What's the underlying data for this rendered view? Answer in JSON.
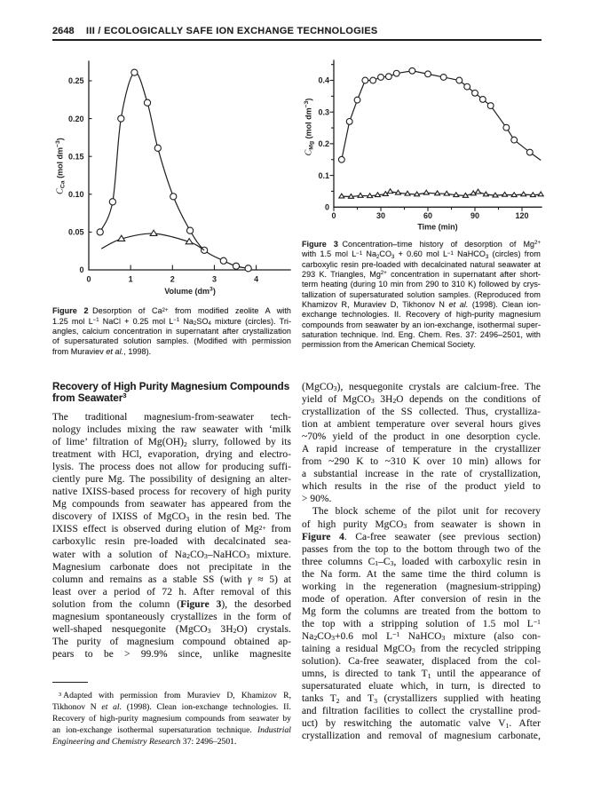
{
  "page": {
    "background": "#ffffff",
    "ink": "#1f1f1f"
  },
  "header": {
    "page_number": "2648",
    "title": "III / ECOLOGICALLY SAFE ION EXCHANGE TECHNOLOGIES"
  },
  "section_heading": {
    "lines": [
      {
        "r": [
          "Recovery of High Purity Magnesium Compounds"
        ],
        "end": 1
      },
      {
        "r": [
          "from Seawater",
          [
            "sup",
            "3"
          ]
        ],
        "end": 1
      }
    ]
  },
  "figure2": {
    "caption_lines": [
      {
        "r": [
          [
            "b",
            "Figure 2"
          ],
          " Desorption of Ca",
          [
            "sup",
            "2+"
          ],
          " from modified zeolite A with"
        ]
      },
      {
        "r": [
          "1.25 mol L",
          [
            "sup",
            "−1"
          ],
          " NaCl + 0.25 mol L",
          [
            "sup",
            "−1"
          ],
          " Na",
          [
            "sub",
            "2"
          ],
          "SO",
          [
            "sub",
            "4"
          ],
          " mixture (circles). Tri-"
        ]
      },
      {
        "r": [
          "angles, calcium concentration in supernatant after crystallization"
        ]
      },
      {
        "r": [
          "of supersaturated solution samples. (Modified with permission"
        ]
      },
      {
        "r": [
          "from Muraviev ",
          [
            "i",
            "et al."
          ],
          ", 1998)."
        ],
        "end": 1
      }
    ]
  },
  "figure3": {
    "caption_lines": [
      {
        "r": [
          [
            "b",
            "Figure 3"
          ],
          " Concentration–time history of desorption of Mg",
          [
            "sup",
            "2+"
          ]
        ]
      },
      {
        "r": [
          "with 1.5 mol L",
          [
            "sup",
            "−1"
          ],
          " Na",
          [
            "sub",
            "2"
          ],
          "CO",
          [
            "sub",
            "3"
          ],
          " + 0.60 mol L",
          [
            "sup",
            "−1"
          ],
          " NaHCO",
          [
            "sub",
            "3"
          ],
          " (circles) from"
        ]
      },
      {
        "r": [
          "carboxylic resin pre-loaded with decalcinated natural seawater at"
        ]
      },
      {
        "r": [
          "293 K. Triangles, Mg",
          [
            "sup",
            "2+"
          ],
          " concentration in supernatant after short-"
        ]
      },
      {
        "r": [
          "term heating (during 10 min from 290 to 310 K) followed by crys-"
        ]
      },
      {
        "r": [
          "tallization of supersaturated solution samples. (Reproduced from"
        ]
      },
      {
        "r": [
          "Khamizov R, Muraviev D, Tikhonov N ",
          [
            "i",
            "et al."
          ],
          " (1998). Clean ion-"
        ]
      },
      {
        "r": [
          "exchange technologies. II. Recovery of high-purity magnesium"
        ]
      },
      {
        "r": [
          "compounds from seawater by an ion-exchange, isothermal super-"
        ]
      },
      {
        "r": [
          "saturation technique. Ind. Eng. Chem. Res. 37: 2496–2501, with"
        ]
      },
      {
        "r": [
          "permission from the American Chemical Society."
        ],
        "end": 1
      }
    ]
  },
  "body": {
    "left_lines": [
      {
        "r": [
          "The traditional magnesium-from-seawater tech-"
        ]
      },
      {
        "r": [
          "nology includes mixing the raw seawater with ‘milk"
        ]
      },
      {
        "r": [
          "of lime’ filtration of Mg(OH)",
          [
            "sub",
            "2"
          ],
          " slurry, followed by its"
        ]
      },
      {
        "r": [
          "treatment with HCl, evaporation, drying and electro-"
        ]
      },
      {
        "r": [
          "lysis. The process does not allow for producing suffi-"
        ]
      },
      {
        "r": [
          "ciently pure Mg. The possibility of designing an alter-"
        ]
      },
      {
        "r": [
          "native IXISS-based process for recovery of high purity"
        ]
      },
      {
        "r": [
          "Mg compounds from seawater has appeared from the"
        ]
      },
      {
        "r": [
          "discovery of IXISS of MgCO",
          [
            "sub",
            "3"
          ],
          " in the resin bed. The"
        ]
      },
      {
        "r": [
          "IXISS effect is observed during elution of Mg",
          [
            "sup",
            "2+"
          ],
          " from"
        ]
      },
      {
        "r": [
          "carboxylic resin pre-loaded with decalcinated sea-"
        ]
      },
      {
        "r": [
          "water with a solution of Na",
          [
            "sub",
            "2"
          ],
          "CO",
          [
            "sub",
            "3"
          ],
          "–NaHCO",
          [
            "sub",
            "3"
          ],
          " mixture."
        ]
      },
      {
        "r": [
          "Magnesium carbonate does not precipitate in the"
        ]
      },
      {
        "r": [
          "column and remains as a stable SS (with ",
          [
            "i",
            "γ"
          ],
          " ≈ 5) at"
        ]
      },
      {
        "r": [
          "least over a period of 72 h. After removal of this"
        ]
      },
      {
        "r": [
          "solution from the column (",
          [
            "b",
            "Figure 3"
          ],
          "), the desorbed"
        ]
      },
      {
        "r": [
          "magnesium spontaneously crystallizes in the form of"
        ]
      },
      {
        "r": [
          "well-shaped nesquegonite (MgCO",
          [
            "sub",
            "3"
          ],
          " 3H",
          [
            "sub",
            "2"
          ],
          "O) crystals."
        ]
      },
      {
        "r": [
          "The purity of magnesium compound obtained ap-"
        ]
      },
      {
        "r": [
          "pears to be > 99.9% since, unlike magnesite"
        ]
      }
    ],
    "right_lines": [
      {
        "r": [
          "(MgCO",
          [
            "sub",
            "3"
          ],
          "), nesquegonite crystals are calcium-free. The"
        ]
      },
      {
        "r": [
          "yield of MgCO",
          [
            "sub",
            "3"
          ],
          " 3H",
          [
            "sub",
            "2"
          ],
          "O depends on the conditions of"
        ]
      },
      {
        "r": [
          "crystallization of the SS collected. Thus, crystalliza-"
        ]
      },
      {
        "r": [
          "tion at ambient temperature over several hours gives"
        ]
      },
      {
        "r": [
          "~70% yield of the product in one desorption cycle."
        ]
      },
      {
        "r": [
          "A rapid increase of temperature in the crystallizer"
        ]
      },
      {
        "r": [
          "from ~290 K to ~310 K over 10 min) allows for"
        ]
      },
      {
        "r": [
          "a substantial increase in the rate of crystallization,"
        ]
      },
      {
        "r": [
          "which results in the rise of the product yield to"
        ]
      },
      {
        "r": [
          "> 90%."
        ],
        "end": 1
      },
      {
        "r": [
          "The block scheme of the pilot unit for recovery"
        ],
        "ind": 1
      },
      {
        "r": [
          "of high purity MgCO",
          [
            "sub",
            "3"
          ],
          " from seawater is shown in"
        ]
      },
      {
        "r": [
          [
            "b",
            "Figure 4"
          ],
          ". Ca-free seawater (see previous section)"
        ]
      },
      {
        "r": [
          "passes from the top to the bottom through two of the"
        ]
      },
      {
        "r": [
          "three columns C",
          [
            "sub",
            "1"
          ],
          "–C",
          [
            "sub",
            "3"
          ],
          ", loaded with carboxylic resin in"
        ]
      },
      {
        "r": [
          "the Na form. At the same time the third column is"
        ]
      },
      {
        "r": [
          "working in the regeneration (magnesium-stripping)"
        ]
      },
      {
        "r": [
          "mode of operation. After conversion of resin in the"
        ]
      },
      {
        "r": [
          "Mg form the columns are treated from the bottom to"
        ]
      },
      {
        "r": [
          "the top with a stripping solution of 1.5 mol L",
          [
            "sup",
            "−1"
          ]
        ]
      },
      {
        "r": [
          "Na",
          [
            "sub",
            "2"
          ],
          "CO",
          [
            "sub",
            "3"
          ],
          "+0.6 mol L",
          [
            "sup",
            "−1"
          ],
          " NaHCO",
          [
            "sub",
            "3"
          ],
          " mixture (also con-"
        ]
      },
      {
        "r": [
          "taining a residual MgCO",
          [
            "sub",
            "3"
          ],
          " from the recycled stripping"
        ]
      },
      {
        "r": [
          "solution). Ca-free seawater, displaced from the col-"
        ]
      },
      {
        "r": [
          "umns, is directed to tank T",
          [
            "sub",
            "1"
          ],
          " until the appearance of"
        ]
      },
      {
        "r": [
          "supersaturated eluate which, in turn, is directed to"
        ]
      },
      {
        "r": [
          "tanks T",
          [
            "sub",
            "2"
          ],
          " and T",
          [
            "sub",
            "3"
          ],
          " (crystallizers supplied with heating"
        ]
      },
      {
        "r": [
          "and filtration facilities to collect the crystalline prod-"
        ]
      },
      {
        "r": [
          "uct) by reswitching the automatic valve V",
          [
            "sub",
            "1"
          ],
          ". After"
        ]
      },
      {
        "r": [
          "crystallization and removal of magnesium carbonate,"
        ]
      }
    ]
  },
  "footnote": {
    "lines": [
      {
        "r": [
          [
            "sup",
            "3"
          ],
          " Adapted with permission from Muraviev D, Khamizov R,"
        ],
        "ind": 1
      },
      {
        "r": [
          "Tikhonov N ",
          [
            "i",
            "et al."
          ],
          " (1998). Clean ion-exchange technologies. II."
        ]
      },
      {
        "r": [
          "Recovery of high-purity magnesium compounds from seawater by"
        ]
      },
      {
        "r": [
          "an ion-exchange isothermal supersaturation technique. ",
          [
            "i",
            "Industrial"
          ]
        ]
      },
      {
        "r": [
          [
            "i",
            "Engineering and Chemistry Research"
          ],
          " 37: 2496–2501."
        ],
        "end": 1
      }
    ]
  },
  "chart_data": [
    {
      "id": "figure2",
      "type": "line",
      "xlabel_runs": [
        "Volume (dm",
        [
          "sup",
          "3"
        ],
        ")"
      ],
      "ylabel_runs": [
        [
          "ci",
          "C"
        ],
        [
          "sub",
          "Ca"
        ],
        " (mol dm",
        [
          "sup",
          "−3"
        ],
        ")"
      ],
      "xlim": [
        0,
        4.8
      ],
      "ylim": [
        0,
        0.277
      ],
      "xticks": {
        "major": [
          {
            "v": 0,
            "label": "0"
          },
          {
            "v": 1,
            "label": "1"
          },
          {
            "v": 2,
            "label": "2"
          },
          {
            "v": 3,
            "label": "3"
          },
          {
            "v": 4,
            "label": "4"
          }
        ]
      },
      "yticks": {
        "major": [
          {
            "v": 0,
            "label": "0"
          },
          {
            "v": 0.05,
            "label": "0.05"
          },
          {
            "v": 0.1,
            "label": "0.10"
          },
          {
            "v": 0.15,
            "label": "0.15"
          },
          {
            "v": 0.2,
            "label": "0.20"
          },
          {
            "v": 0.25,
            "label": "0.25"
          }
        ]
      },
      "series": [
        {
          "name": "circles",
          "marker": "circle",
          "smooth": true,
          "points": [
            [
              0.27,
              0.05
            ],
            [
              0.57,
              0.09
            ],
            [
              0.77,
              0.2
            ],
            [
              1.09,
              0.261
            ],
            [
              1.4,
              0.221
            ],
            [
              1.65,
              0.161
            ],
            [
              2.02,
              0.097
            ],
            [
              2.42,
              0.052
            ],
            [
              2.76,
              0.026
            ],
            [
              3.22,
              0.012
            ],
            [
              3.52,
              0.005
            ],
            [
              3.81,
              0.002
            ]
          ]
        },
        {
          "name": "triangles",
          "marker": "triangle",
          "smooth": true,
          "points": [
            [
              0.78,
              0.041
            ],
            [
              1.55,
              0.048
            ],
            [
              2.4,
              0.037
            ]
          ],
          "curve": [
            [
              0.3,
              0.028
            ],
            [
              0.78,
              0.041
            ],
            [
              1.55,
              0.048
            ],
            [
              2.4,
              0.037
            ],
            [
              2.76,
              0.026
            ]
          ]
        }
      ]
    },
    {
      "id": "figure3",
      "type": "line",
      "xlabel_runs": [
        "Time (min)"
      ],
      "ylabel_runs": [
        [
          "ci",
          "C"
        ],
        [
          "sub",
          "Mg"
        ],
        " (mol dm",
        [
          "sup",
          "−3"
        ],
        ")"
      ],
      "xlim": [
        0,
        132.5
      ],
      "ylim": [
        0,
        0.462
      ],
      "xticks": {
        "major": [
          {
            "v": 0,
            "label": "0"
          },
          {
            "v": 30,
            "label": "30"
          },
          {
            "v": 60,
            "label": "60"
          },
          {
            "v": 90,
            "label": "90"
          },
          {
            "v": 120,
            "label": "120"
          }
        ],
        "minor": [
          15,
          45,
          75,
          105
        ]
      },
      "yticks": {
        "major": [
          {
            "v": 0,
            "label": "0"
          },
          {
            "v": 0.1,
            "label": "0.1"
          },
          {
            "v": 0.2,
            "label": "0.2"
          },
          {
            "v": 0.3,
            "label": "0.3"
          },
          {
            "v": 0.4,
            "label": "0.4"
          }
        ],
        "minor": [
          0.05,
          0.15,
          0.25,
          0.35,
          0.45
        ]
      },
      "series": [
        {
          "name": "circles",
          "marker": "circle",
          "smooth": false,
          "points": [
            [
              5,
              0.15
            ],
            [
              10,
              0.27
            ],
            [
              15,
              0.338
            ],
            [
              20,
              0.4
            ],
            [
              25,
              0.4
            ],
            [
              30,
              0.41
            ],
            [
              35,
              0.412
            ],
            [
              40,
              0.422
            ],
            [
              50,
              0.43
            ],
            [
              60,
              0.42
            ],
            [
              70,
              0.41
            ],
            [
              80,
              0.4
            ],
            [
              85,
              0.38
            ],
            [
              90,
              0.36
            ],
            [
              95,
              0.34
            ],
            [
              100,
              0.32
            ],
            [
              110,
              0.251
            ],
            [
              115,
              0.212
            ],
            [
              125,
              0.173
            ]
          ],
          "tail": [
            132,
            0.148
          ]
        },
        {
          "name": "triangles",
          "marker": "triangle",
          "smooth": false,
          "points": [
            [
              5,
              0.034
            ],
            [
              11,
              0.033
            ],
            [
              17,
              0.036
            ],
            [
              23,
              0.035
            ],
            [
              28,
              0.038
            ],
            [
              33,
              0.041
            ],
            [
              36,
              0.049
            ],
            [
              41,
              0.045
            ],
            [
              47,
              0.042
            ],
            [
              53,
              0.04
            ],
            [
              59,
              0.045
            ],
            [
              66,
              0.043
            ],
            [
              72,
              0.042
            ],
            [
              78,
              0.038
            ],
            [
              84,
              0.036
            ],
            [
              89,
              0.043
            ],
            [
              92,
              0.048
            ],
            [
              97,
              0.04
            ],
            [
              103,
              0.037
            ],
            [
              109,
              0.039
            ],
            [
              115,
              0.038
            ],
            [
              121,
              0.04
            ],
            [
              127,
              0.038
            ],
            [
              132,
              0.04
            ]
          ]
        }
      ]
    }
  ]
}
